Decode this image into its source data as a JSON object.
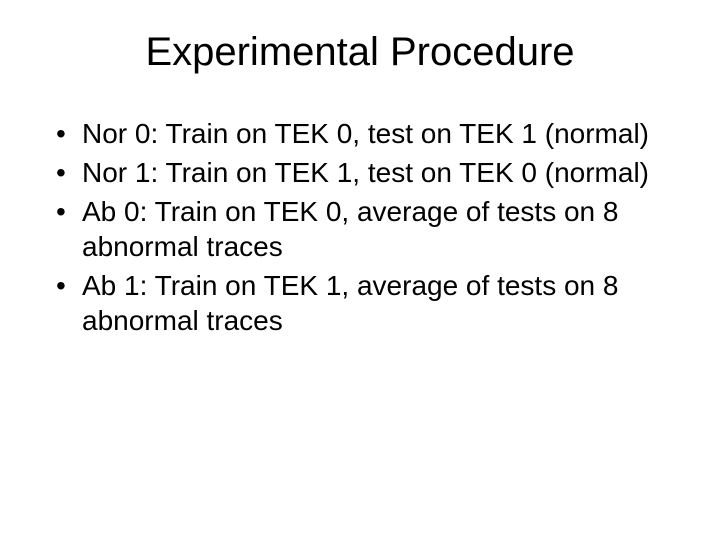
{
  "slide": {
    "title": "Experimental Procedure",
    "title_fontsize": 40,
    "body_fontsize": 28,
    "background_color": "#ffffff",
    "text_color": "#000000",
    "font_family": "Arial",
    "bullets": [
      "Nor 0: Train on TEK 0, test on TEK 1 (normal)",
      "Nor 1: Train on TEK 1, test on TEK 0 (normal)",
      "Ab 0: Train on TEK 0, average of tests on 8 abnormal traces",
      "Ab 1: Train on TEK 1, average of tests on 8 abnormal traces"
    ]
  }
}
